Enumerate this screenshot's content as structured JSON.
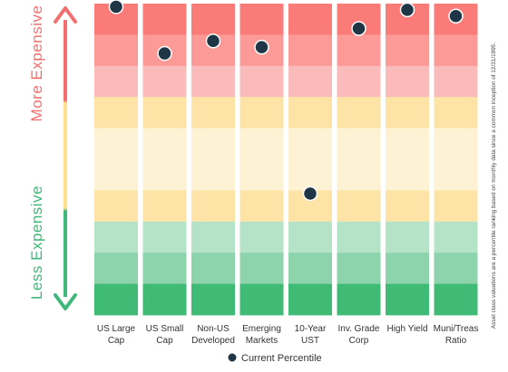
{
  "chart_data": {
    "type": "scatter",
    "categories": [
      [
        "US Large",
        "Cap"
      ],
      [
        "US Small",
        "Cap"
      ],
      [
        "Non-US",
        "Developed"
      ],
      [
        "Emerging",
        "Markets"
      ],
      [
        "10-Year",
        "UST"
      ],
      [
        "Inv. Grade",
        "Corp"
      ],
      [
        "High Yield",
        ""
      ],
      [
        "Muni/Treas",
        "Ratio"
      ]
    ],
    "series": [
      {
        "name": "Current Percentile",
        "values": [
          99,
          84,
          88,
          86,
          39,
          92,
          98,
          96
        ]
      }
    ],
    "ylim": [
      0,
      100
    ],
    "bands_top_to_bottom": [
      "#fa7b78",
      "#fb9a97",
      "#fcbbbb",
      "#fde4a6",
      "#fef2d5",
      "#fef2d5",
      "#fde4a6",
      "#b5e3c8",
      "#8dd3ac",
      "#3fbb76"
    ],
    "arrow_top_color": "#f36f6f",
    "arrow_bottom_color": "#3fb879",
    "marker_color": "#1f3646",
    "top_label": "More Expensive",
    "bottom_label": "Less Expensive",
    "legend_label": "Current Percentile",
    "footnote": "Asset class valuations are a percentile ranking based on monthly data since a common inception of 12/31/1995."
  }
}
